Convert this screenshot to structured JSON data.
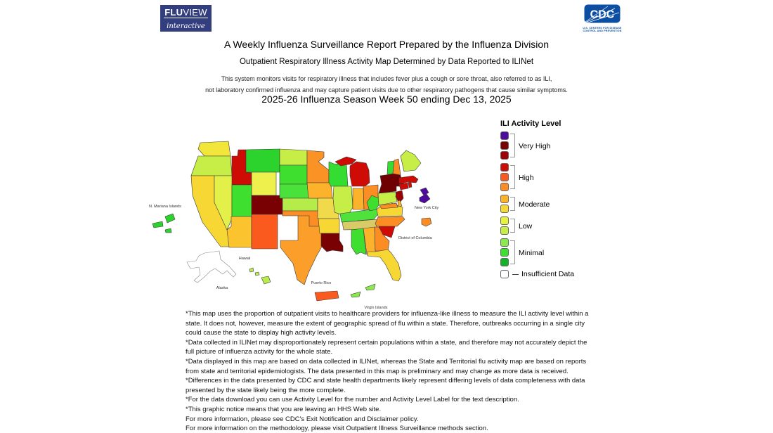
{
  "logos": {
    "fluview": {
      "name_bold": "FLU",
      "name_rest": "VIEW",
      "tagline": "interactive"
    },
    "cdc": {
      "acronym": "CDC",
      "tagline_line1": "U.S. CENTERS FOR DISEASE",
      "tagline_line2": "CONTROL AND PREVENTION",
      "brand_color": "#0b4ea2"
    }
  },
  "header": {
    "title": "A Weekly Influenza Surveillance Report Prepared by the Influenza Division",
    "subtitle": "Outpatient Respiratory Illness Activity Map Determined by Data Reported to ILINet",
    "description_line1": "This system monitors visits for respiratory illness that includes fever plus a cough or sore throat, also referred to as ILI,",
    "description_line2": "not laboratory confirmed influenza and may capture patient visits due to other respiratory pathogens that cause similar symptoms.",
    "season_line": "2025-26 Influenza Season Week 50 ending Dec 13, 2025"
  },
  "legend": {
    "title": "ILI Activity Level",
    "groups": [
      {
        "label": "Very High",
        "colors": [
          "#4e0b9e",
          "#7a0103",
          "#9d0103"
        ]
      },
      {
        "label": "High",
        "colors": [
          "#ce0b04",
          "#fa5a1e",
          "#fb8d24"
        ]
      },
      {
        "label": "Moderate",
        "colors": [
          "#fcb22a",
          "#f6d733"
        ]
      },
      {
        "label": "Low",
        "colors": [
          "#e6f23c",
          "#c6ee47"
        ]
      },
      {
        "label": "Minimal",
        "colors": [
          "#8ae94c",
          "#3fdf2f",
          "#13b228"
        ]
      }
    ],
    "insufficient": {
      "label": "Insufficient Data",
      "color": "#ffffff"
    }
  },
  "map": {
    "labels": [
      {
        "id": "n-mariana-islands",
        "text": "N. Mariana Islands"
      },
      {
        "id": "hawaii",
        "text": "Hawaii"
      },
      {
        "id": "alaska",
        "text": "Alaska"
      },
      {
        "id": "puerto-rico",
        "text": "Puerto Rico"
      },
      {
        "id": "virgin-islands",
        "text": "Virgin Islands"
      },
      {
        "id": "new-york-city",
        "text": "New York City"
      },
      {
        "id": "district-of-columbia",
        "text": "District of Columbia"
      }
    ],
    "states": {
      "WA": {
        "name": "Washington",
        "color": "#f3e63a",
        "category": "Moderate"
      },
      "OR": {
        "name": "Oregon",
        "color": "#c6ee47",
        "category": "Low"
      },
      "CA": {
        "name": "California",
        "color": "#f6d733",
        "category": "Moderate"
      },
      "ID": {
        "name": "Idaho",
        "color": "#ce0b04",
        "category": "High"
      },
      "NV": {
        "name": "Nevada",
        "color": "#e3f04a",
        "category": "Low"
      },
      "MT": {
        "name": "Montana",
        "color": "#2cd32c",
        "category": "Minimal"
      },
      "WY": {
        "name": "Wyoming",
        "color": "#eef04e",
        "category": "Low"
      },
      "UT": {
        "name": "Utah",
        "color": "#3fdf2f",
        "category": "Minimal"
      },
      "CO": {
        "name": "Colorado",
        "color": "#7a0103",
        "category": "Very High"
      },
      "AZ": {
        "name": "Arizona",
        "color": "#fbc42e",
        "category": "Moderate"
      },
      "NM": {
        "name": "New Mexico",
        "color": "#fa5a1e",
        "category": "High"
      },
      "ND": {
        "name": "North Dakota",
        "color": "#c6ee47",
        "category": "Low"
      },
      "SD": {
        "name": "South Dakota",
        "color": "#3fdf2f",
        "category": "Minimal"
      },
      "NE": {
        "name": "Nebraska",
        "color": "#4ae13a",
        "category": "Minimal"
      },
      "KS": {
        "name": "Kansas",
        "color": "#b5ec4a",
        "category": "Low"
      },
      "OK": {
        "name": "Oklahoma",
        "color": "#fb8d24",
        "category": "High"
      },
      "TX": {
        "name": "Texas",
        "color": "#fc9e2a",
        "category": "High"
      },
      "MN": {
        "name": "Minnesota",
        "color": "#fb9226",
        "category": "High"
      },
      "IA": {
        "name": "Iowa",
        "color": "#fcb22a",
        "category": "Moderate"
      },
      "MO": {
        "name": "Missouri",
        "color": "#f0d94a",
        "category": "Moderate"
      },
      "AR": {
        "name": "Arkansas",
        "color": "#f6d733",
        "category": "Moderate"
      },
      "LA": {
        "name": "Louisiana",
        "color": "#7a0103",
        "category": "Very High"
      },
      "WI": {
        "name": "Wisconsin",
        "color": "#35dc31",
        "category": "Minimal"
      },
      "IL": {
        "name": "Illinois",
        "color": "#c6ee47",
        "category": "Low"
      },
      "MI": {
        "name": "Michigan",
        "color": "#ce0b04",
        "category": "High"
      },
      "IN": {
        "name": "Indiana",
        "color": "#fcb22a",
        "category": "Moderate"
      },
      "OH": {
        "name": "Ohio",
        "color": "#fb8d24",
        "category": "High"
      },
      "KY": {
        "name": "Kentucky",
        "color": "#4fe23c",
        "category": "Minimal"
      },
      "TN": {
        "name": "Tennessee",
        "color": "#d8cb68",
        "category": "Moderate"
      },
      "MS": {
        "name": "Mississippi",
        "color": "#3fdf2f",
        "category": "Minimal"
      },
      "AL": {
        "name": "Alabama",
        "color": "#fcb22a",
        "category": "Moderate"
      },
      "GA": {
        "name": "Georgia",
        "color": "#fb8d24",
        "category": "High"
      },
      "FL": {
        "name": "Florida",
        "color": "#f6d733",
        "category": "Moderate"
      },
      "SC": {
        "name": "South Carolina",
        "color": "#ce0b04",
        "category": "High"
      },
      "NC": {
        "name": "North Carolina",
        "color": "#fb8d24",
        "category": "High"
      },
      "VA": {
        "name": "Virginia",
        "color": "#f6d733",
        "category": "Moderate"
      },
      "WV": {
        "name": "West Virginia",
        "color": "#3fdf2f",
        "category": "Minimal"
      },
      "PA": {
        "name": "Pennsylvania",
        "color": "#c6ee47",
        "category": "Low"
      },
      "NY": {
        "name": "New York",
        "color": "#6f0102",
        "category": "Very High"
      },
      "NJ": {
        "name": "New Jersey",
        "color": "#9d0103",
        "category": "Very High"
      },
      "CT": {
        "name": "Connecticut",
        "color": "#ce0b04",
        "category": "High"
      },
      "RI": {
        "name": "Rhode Island",
        "color": "#ce0b04",
        "category": "High"
      },
      "MA": {
        "name": "Massachusetts",
        "color": "#ce0b04",
        "category": "High"
      },
      "VT": {
        "name": "Vermont",
        "color": "#35dc31",
        "category": "Minimal"
      },
      "NH": {
        "name": "New Hampshire",
        "color": "#fb8d24",
        "category": "High"
      },
      "ME": {
        "name": "Maine",
        "color": "#c6ee47",
        "category": "Low"
      },
      "MD": {
        "name": "Maryland",
        "color": "#fb8d24",
        "category": "High"
      },
      "DE": {
        "name": "Delaware",
        "color": "#fcb22a",
        "category": "Moderate"
      },
      "DC": {
        "name": "District of Columbia",
        "color": "#fb8d24",
        "category": "High"
      },
      "NYC": {
        "name": "New York City",
        "color": "#4e0b9e",
        "category": "Very High"
      },
      "AK": {
        "name": "Alaska",
        "color": "#ffffff",
        "category": "Insufficient Data"
      },
      "HI": {
        "name": "Hawaii",
        "color": "#b9ec4a",
        "category": "Low"
      },
      "PR": {
        "name": "Puerto Rico",
        "color": "#fa5a1e",
        "category": "High"
      },
      "VI": {
        "name": "Virgin Islands",
        "color": "#8ae94c",
        "category": "Minimal"
      },
      "MP": {
        "name": "N. Mariana Islands",
        "color": "#2cd32c",
        "category": "Minimal"
      }
    }
  },
  "notes": [
    "*This map uses the proportion of outpatient visits to healthcare providers for influenza-like illness to measure the ILI activity level within a state. It does not, however, measure the extent of geographic spread of flu within a state. Therefore, outbreaks occurring in a single city could cause the state to display high activity levels.",
    "*Data collected in ILINet may disproportionately represent certain populations within a state, and therefore may not accurately depict the full picture of influenza activity for the whole state.",
    "*Data displayed in this map are based on data collected in ILINet, whereas the State and Territorial flu activity map are based on reports from state and territorial epidemiologists. The data presented in this map is preliminary and may change as more data is received.",
    "*Differences in the data presented by CDC and state health departments likely represent differing levels of data completeness with data presented by the state likely being the more complete.",
    "*For the data download you can use Activity Level for the number and Activity Level Label for the text description.",
    "*This graphic notice means that you are leaving an HHS Web site.",
    "For more information, please see CDC's Exit Notification and Disclaimer policy.",
    "For more information on the methodology, please visit Outpatient Illness Surveillance methods section."
  ]
}
